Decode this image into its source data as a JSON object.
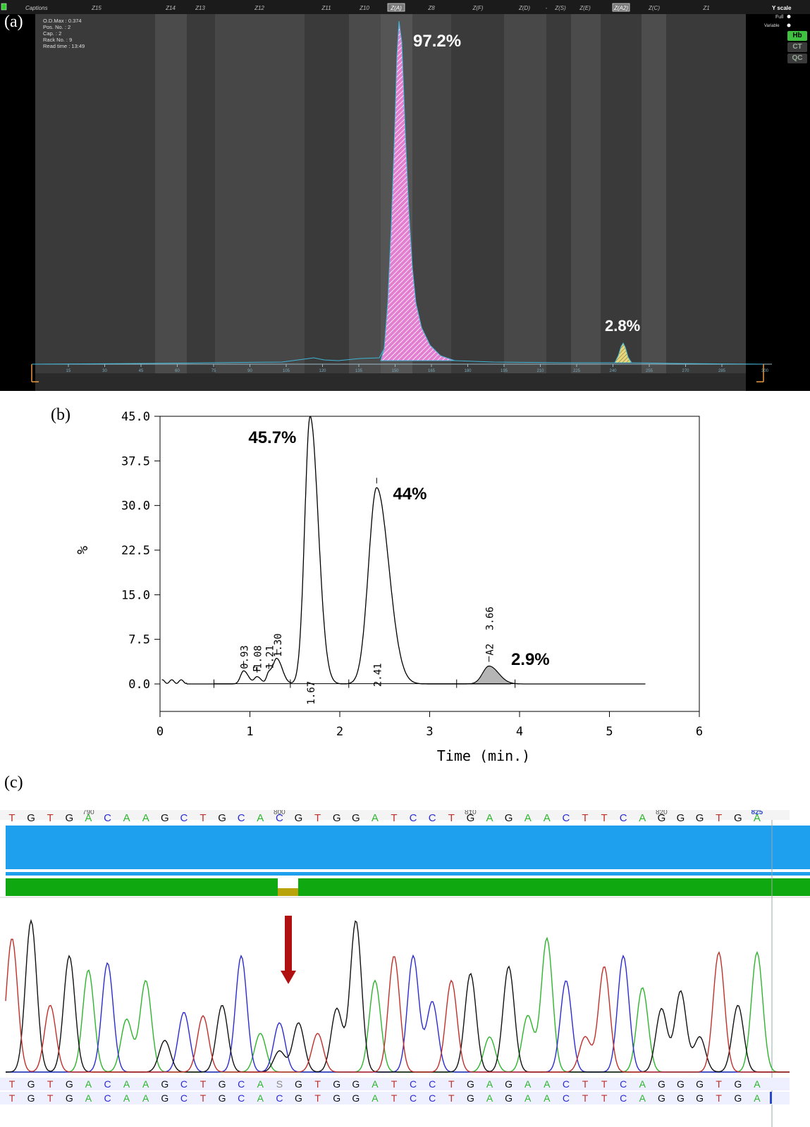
{
  "labels": {
    "a": "(a)",
    "b": "(b)",
    "c": "(c)"
  },
  "panel_a": {
    "header_left": "Captions",
    "info_lines": [
      "O.D.Max : 0.374",
      "Pos. No. : 2",
      "Cap. : 2",
      "Rack No. : 9",
      "Read time : 13:49"
    ],
    "zones": [
      "Z15",
      "Z14",
      "Z13",
      "Z12",
      "Z11",
      "Z10",
      "Z(A)",
      "Z8",
      "Z(F)",
      "Z(D)",
      "-",
      "Z(S)",
      "Z(E)",
      "Z(A2)",
      "Z(C)",
      "Z1"
    ],
    "y_scale_title": "Y scale",
    "y_scale_full": "Full",
    "y_scale_variable": "Variable",
    "buttons": [
      "Hb",
      "CT",
      "QC"
    ],
    "x_ticks": [
      15,
      30,
      45,
      60,
      75,
      90,
      105,
      120,
      135,
      150,
      165,
      180,
      195,
      210,
      225,
      240,
      255,
      270,
      285
    ],
    "peak_labels": {
      "main": "97.2%",
      "minor": "2.8%"
    },
    "colors": {
      "main_peak": "#e27fd0",
      "minor_peak": "#e8d77a",
      "trace": "#3fb6d8"
    }
  },
  "chart_data": [
    {
      "type": "line",
      "panel": "b",
      "xlabel": "Time (min.)",
      "ylabel": "%",
      "xlim": [
        0,
        6
      ],
      "ylim": [
        0,
        45
      ],
      "x_ticks": [
        "0",
        "1",
        "2",
        "3",
        "4",
        "5",
        "6"
      ],
      "y_ticks": [
        "0.0",
        "7.5",
        "15.0",
        "22.5",
        "30.0",
        "37.5",
        "45.0"
      ],
      "peaks": [
        {
          "rt": 0.93,
          "label": "0.93",
          "height": 2.2
        },
        {
          "rt": 1.08,
          "label": "1.08",
          "height": 1.2,
          "name": "F"
        },
        {
          "rt": 1.21,
          "label": "1.21",
          "height": 1.8
        },
        {
          "rt": 1.3,
          "label": "1.30",
          "height": 4.2
        },
        {
          "rt": 1.67,
          "label": "1.67",
          "height": 45,
          "percent": "45.7%"
        },
        {
          "rt": 2.41,
          "label": "2.41",
          "height": 33,
          "percent": "44%"
        },
        {
          "rt": 3.66,
          "label": "3.66",
          "height": 3.0,
          "name": "A2",
          "percent": "2.9%"
        }
      ]
    }
  ],
  "panel_c": {
    "positions": [
      "790",
      "800",
      "810",
      "820",
      "825"
    ],
    "reference": "TGTGACAAGCTGCACGTGGATCCTGAGAACTTCAGGGTGA",
    "sample": "TGTGACAAGCTGCASGTGGATCCTGAGAACTTCAGGGTGA",
    "consensus": "TGTGACAAGCTGCACGTGGATCCTGAGAACTTCAGGGTGA",
    "base_colors": {
      "A": "#2db52d",
      "C": "#2b2bd0",
      "G": "#111111",
      "T": "#c0302a",
      "S": "#888888"
    },
    "bar_colors": {
      "blue": "#1ea0ee",
      "green": "#10a810",
      "mismatch": "#b8a40a"
    },
    "arrow_color": "#b01010"
  }
}
